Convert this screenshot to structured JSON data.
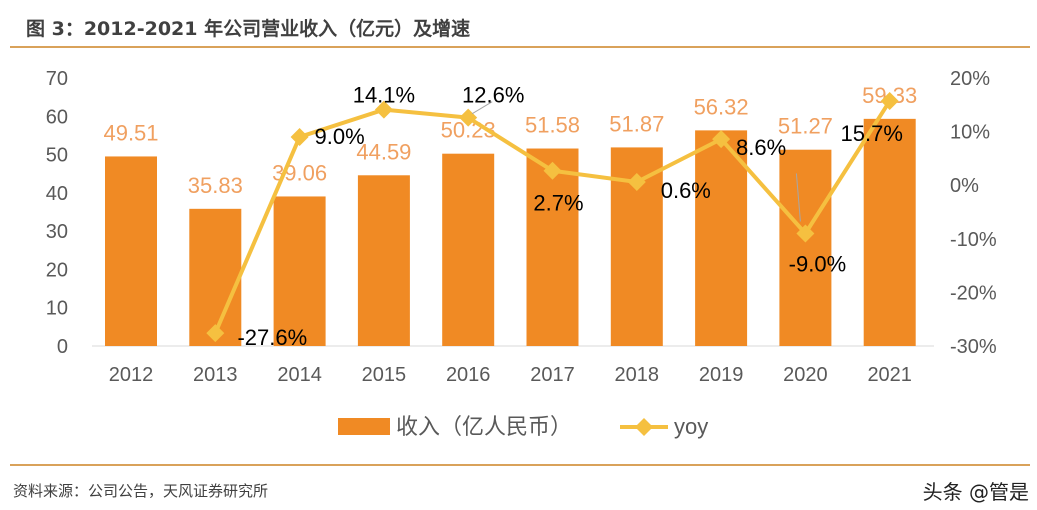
{
  "title": "图 3：2012-2021 年公司营业收入（亿元）及增速",
  "source": "资料来源：公司公告，天风证券研究所",
  "watermark": "头条 @管是",
  "chart_data": {
    "type": "bar+line",
    "categories": [
      "2012",
      "2013",
      "2014",
      "2015",
      "2016",
      "2017",
      "2018",
      "2019",
      "2020",
      "2021"
    ],
    "series": [
      {
        "name": "收入（亿人民币）",
        "type": "bar",
        "axis": "left",
        "color": "#F08A24",
        "label_color": "#F0A060",
        "values": [
          49.51,
          35.83,
          39.06,
          44.59,
          50.23,
          51.58,
          51.87,
          56.32,
          51.27,
          59.33
        ],
        "labels": [
          "49.51",
          "35.83",
          "39.06",
          "44.59",
          "50.23",
          "51.58",
          "51.87",
          "56.32",
          "51.27",
          "59.33"
        ]
      },
      {
        "name": "yoy",
        "type": "line",
        "axis": "right",
        "color": "#F5C040",
        "marker": "diamond",
        "values": [
          null,
          -27.6,
          9.0,
          14.1,
          12.6,
          2.7,
          0.6,
          8.6,
          -9.0,
          15.7
        ],
        "labels": [
          "",
          "-27.6%",
          "9.0%",
          "14.1%",
          "12.6%",
          "2.7%",
          "0.6%",
          "8.6%",
          "-9.0%",
          "15.7%"
        ]
      }
    ],
    "y_left": {
      "lim": [
        0,
        70
      ],
      "ticks": [
        "0",
        "10",
        "20",
        "30",
        "40",
        "50",
        "60",
        "70"
      ]
    },
    "y_right": {
      "lim": [
        -30,
        20
      ],
      "ticks": [
        "-30%",
        "-20%",
        "-10%",
        "0%",
        "10%",
        "20%"
      ]
    },
    "grid": false,
    "legend": "bottom"
  }
}
